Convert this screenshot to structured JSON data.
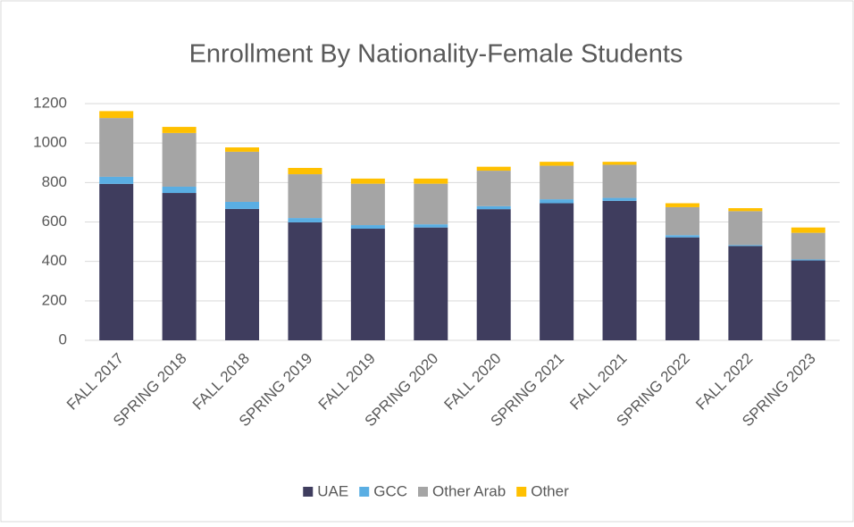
{
  "chart_data": {
    "type": "stacked_bar",
    "title": "Enrollment By Nationality-Female Students",
    "categories": [
      "FALL 2017",
      "SPRING 2018",
      "FALL 2018",
      "SPRING 2019",
      "FALL 2019",
      "SPRING 2020",
      "FALL 2020",
      "SPRING 2021",
      "FALL 2021",
      "SPRING 2022",
      "FALL 2022",
      "SPRING 2023"
    ],
    "series": [
      {
        "name": "UAE",
        "color": "#3f3d5e",
        "values": [
          793,
          747,
          666,
          598,
          566,
          572,
          665,
          695,
          707,
          522,
          478,
          405
        ]
      },
      {
        "name": "GCC",
        "color": "#5aaee3",
        "values": [
          36,
          32,
          36,
          22,
          18,
          16,
          15,
          20,
          15,
          11,
          5,
          5
        ]
      },
      {
        "name": "Other Arab",
        "color": "#a5a5a5",
        "values": [
          298,
          272,
          254,
          222,
          210,
          206,
          180,
          170,
          168,
          142,
          172,
          135
        ]
      },
      {
        "name": "Other",
        "color": "#ffc000",
        "values": [
          35,
          31,
          22,
          32,
          26,
          26,
          20,
          20,
          15,
          20,
          15,
          27
        ]
      }
    ],
    "ylim": [
      0,
      1200
    ],
    "yticks": [
      0,
      200,
      400,
      600,
      800,
      1000,
      1200
    ],
    "grid": true,
    "legend": "bottom"
  }
}
